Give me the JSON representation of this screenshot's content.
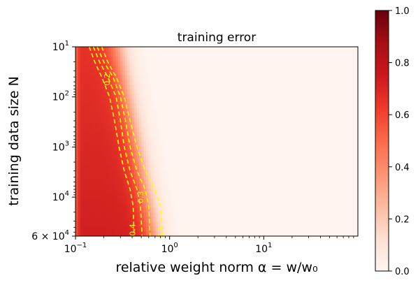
{
  "chart_data": {
    "type": "heatmap",
    "title": "training error",
    "xlabel": "relative weight norm α = w/w₀",
    "ylabel": "training data size N",
    "x_scale": "log",
    "y_scale": "log",
    "y_inverted": true,
    "xlim": [
      0.1,
      100
    ],
    "ylim": [
      10,
      60000
    ],
    "x_ticks": [
      {
        "value": 0.1,
        "base": "10",
        "exp": "−1"
      },
      {
        "value": 1,
        "base": "10",
        "exp": "0"
      },
      {
        "value": 10,
        "base": "10",
        "exp": "1"
      }
    ],
    "y_ticks": [
      {
        "value": 10,
        "prefix": "",
        "base": "10",
        "exp": "1"
      },
      {
        "value": 100,
        "prefix": "",
        "base": "10",
        "exp": "2"
      },
      {
        "value": 1000,
        "prefix": "",
        "base": "10",
        "exp": "3"
      },
      {
        "value": 10000,
        "prefix": "",
        "base": "10",
        "exp": "4"
      },
      {
        "value": 60000,
        "prefix": "6 × ",
        "base": "10",
        "exp": "4"
      }
    ],
    "colormap": "Reds",
    "color_stops": [
      "#fff5f0",
      "#fee0d2",
      "#fcbba1",
      "#fc9272",
      "#fb6a4a",
      "#ef3b2c",
      "#cb181d",
      "#a50f15",
      "#67000d"
    ],
    "colorbar": {
      "range": [
        0,
        1
      ],
      "ticks": [
        "0.0",
        "0.2",
        "0.4",
        "0.6",
        "0.8",
        "1.0"
      ]
    },
    "contour_color": "#ffff00",
    "contours": [
      {
        "level": 0.1,
        "label": "0.1",
        "points": [
          [
            0.19,
            10
          ],
          [
            0.22,
            20
          ],
          [
            0.27,
            40
          ],
          [
            0.33,
            100
          ],
          [
            0.38,
            300
          ],
          [
            0.45,
            1000
          ],
          [
            0.55,
            3000
          ],
          [
            0.7,
            7000
          ],
          [
            0.8,
            15000
          ],
          [
            0.84,
            60000
          ]
        ]
      },
      {
        "level": 0.2,
        "label": "0.2",
        "points": [
          [
            0.17,
            10
          ],
          [
            0.2,
            20
          ],
          [
            0.25,
            40
          ],
          [
            0.3,
            100
          ],
          [
            0.34,
            300
          ],
          [
            0.38,
            1000
          ],
          [
            0.45,
            3000
          ],
          [
            0.55,
            7000
          ],
          [
            0.6,
            15000
          ],
          [
            0.62,
            60000
          ]
        ]
      },
      {
        "level": 0.3,
        "label": "0.3",
        "points": [
          [
            0.155,
            10
          ],
          [
            0.18,
            20
          ],
          [
            0.22,
            40
          ],
          [
            0.27,
            100
          ],
          [
            0.3,
            300
          ],
          [
            0.33,
            1000
          ],
          [
            0.38,
            3000
          ],
          [
            0.45,
            7000
          ],
          [
            0.49,
            15000
          ],
          [
            0.51,
            60000
          ]
        ]
      },
      {
        "level": 0.4,
        "label": "0.4",
        "points": [
          [
            0.14,
            10
          ],
          [
            0.16,
            20
          ],
          [
            0.19,
            40
          ],
          [
            0.23,
            100
          ],
          [
            0.26,
            300
          ],
          [
            0.29,
            1000
          ],
          [
            0.33,
            3000
          ],
          [
            0.38,
            7000
          ],
          [
            0.41,
            15000
          ],
          [
            0.42,
            60000
          ]
        ]
      }
    ],
    "contour_labels": [
      {
        "text": "0.4",
        "x": 0.41,
        "y": 45000
      },
      {
        "text": "0.1",
        "x": 0.82,
        "y": 50000
      },
      {
        "text": "0.3",
        "x": 0.5,
        "y": 10000
      },
      {
        "text": "0.2",
        "x": 0.22,
        "y": 45
      }
    ]
  }
}
